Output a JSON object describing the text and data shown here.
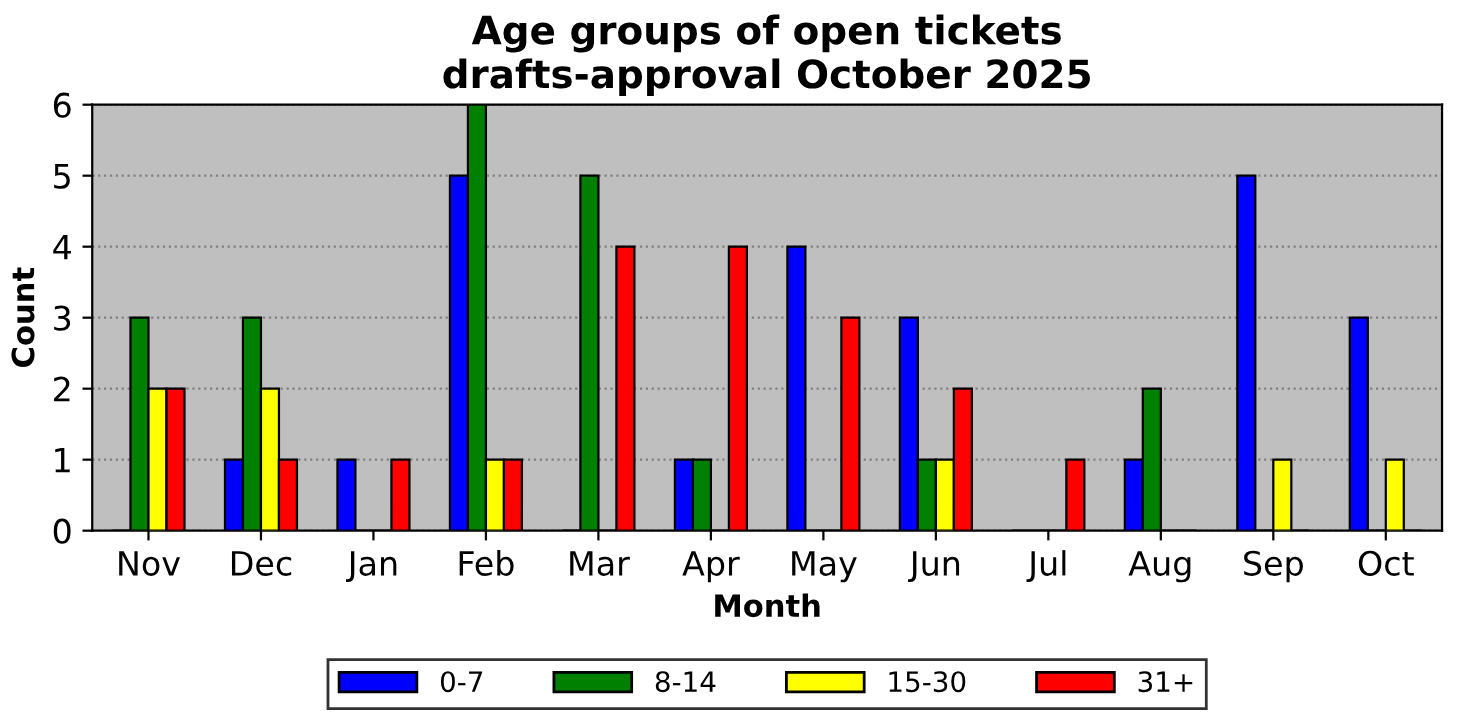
{
  "chart_data": {
    "type": "bar",
    "title": "Age groups of open tickets\ndrafts-approval October 2025",
    "xlabel": "Month",
    "ylabel": "Count",
    "categories": [
      "Nov",
      "Dec",
      "Jan",
      "Feb",
      "Mar",
      "Apr",
      "May",
      "Jun",
      "Jul",
      "Aug",
      "Sep",
      "Oct"
    ],
    "series": [
      {
        "name": "0-7",
        "color": "#0000ff",
        "values": [
          0,
          1,
          1,
          5,
          0,
          1,
          4,
          3,
          0,
          1,
          5,
          3
        ]
      },
      {
        "name": "8-14",
        "color": "#008000",
        "values": [
          3,
          3,
          0,
          6,
          5,
          1,
          0,
          1,
          0,
          2,
          0,
          0
        ]
      },
      {
        "name": "15-30",
        "color": "#ffff00",
        "values": [
          2,
          2,
          0,
          1,
          0,
          0,
          0,
          1,
          0,
          0,
          1,
          1
        ]
      },
      {
        "name": "31+",
        "color": "#ff0000",
        "values": [
          2,
          1,
          1,
          1,
          4,
          4,
          3,
          2,
          1,
          0,
          0,
          0
        ]
      }
    ],
    "ylim": [
      0,
      6
    ],
    "yticks": [
      0,
      1,
      2,
      3,
      4,
      5,
      6
    ],
    "grid": "y",
    "legend": "bottom"
  }
}
